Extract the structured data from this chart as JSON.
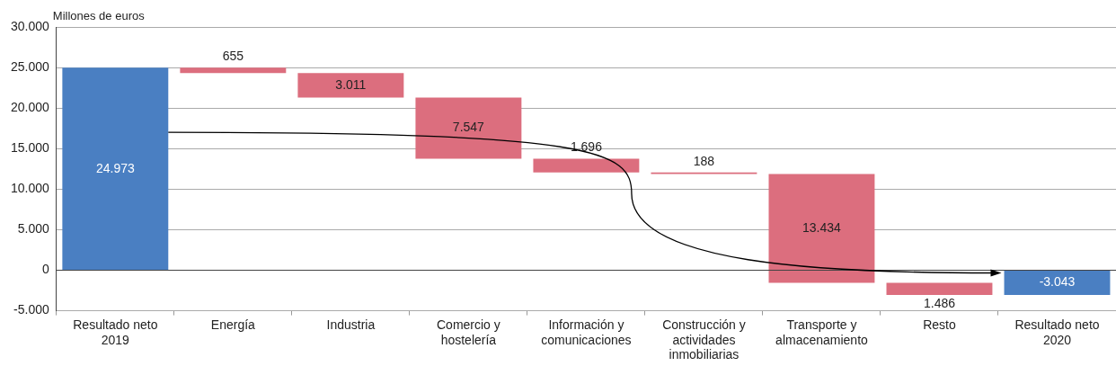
{
  "chart_data": {
    "type": "bar",
    "ylabel": "Millones de euros",
    "categories": [
      "Resultado neto 2019",
      "Energía",
      "Industria",
      "Comercio y hostelería",
      "Información y comunicaciones",
      "Construcción y actividades inmobiliarias",
      "Transporte y almacenamiento",
      "Resto",
      "Resultado neto 2020"
    ],
    "values": [
      24973,
      655,
      3011,
      7547,
      1696,
      188,
      13434,
      1486,
      -3043
    ],
    "base": [
      0,
      24318,
      21307,
      13760,
      12064,
      11876,
      -1558,
      -3044,
      0
    ],
    "colors": [
      "#4a7fc2",
      "#dc6e7e",
      "#dc6e7e",
      "#dc6e7e",
      "#dc6e7e",
      "#dc6e7e",
      "#dc6e7e",
      "#dc6e7e",
      "#4a7fc2"
    ],
    "value_labels": [
      "24.973",
      "655",
      "3.011",
      "7.547",
      "1.696",
      "188",
      "13.434",
      "1.486",
      "-3.043"
    ],
    "ylim": [
      -5000,
      30000
    ],
    "yticks": [
      {
        "value": -5000,
        "label": "-5.000"
      },
      {
        "value": 0,
        "label": "0"
      },
      {
        "value": 5000,
        "label": "5.000"
      },
      {
        "value": 10000,
        "label": "10.000"
      },
      {
        "value": 15000,
        "label": "15.000"
      },
      {
        "value": 20000,
        "label": "20.000"
      },
      {
        "value": 25000,
        "label": "25.000"
      },
      {
        "value": 30000,
        "label": "30.000"
      }
    ],
    "grid": "y",
    "legend": false
  }
}
